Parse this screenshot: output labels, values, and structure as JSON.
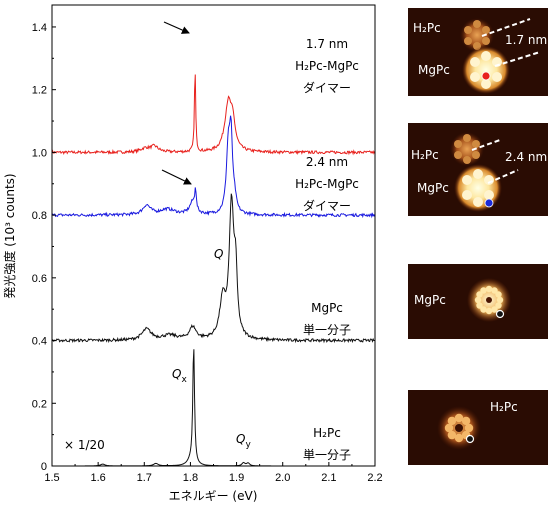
{
  "chart_data": {
    "type": "line",
    "xlabel": "エネルギー (eV)",
    "ylabel": "発光強度 (10³ counts)",
    "xlim": [
      1.5,
      2.2
    ],
    "ylim": [
      0,
      1.47
    ],
    "xticks": [
      1.5,
      1.6,
      1.7,
      1.8,
      1.9,
      2.0,
      2.1,
      2.2
    ],
    "yticks": [
      0,
      0.2,
      0.4,
      0.6,
      0.8,
      1.0,
      1.2,
      1.4
    ],
    "xtick_labels": [
      "1.5",
      "1.6",
      "1.7",
      "1.8",
      "1.9",
      "2.0",
      "2.1",
      "2.2"
    ],
    "ytick_labels": [
      "0",
      "0.2",
      "0.4",
      "0.6",
      "0.8",
      "1.0",
      "1.2",
      "1.4"
    ],
    "grid": false,
    "series": [
      {
        "color": "#e8211d",
        "baseline": 0.2,
        "offset": 1.0,
        "labels": [
          "1.7 nm",
          "H₂Pc-MgPc",
          "ダイマー"
        ],
        "peaks": [
          {
            "x": 1.702,
            "height": 0.012,
            "width": 0.012
          },
          {
            "x": 1.722,
            "height": 0.018,
            "width": 0.01
          },
          {
            "x": 1.81,
            "height": 0.268,
            "width": 0.0016
          },
          {
            "x": 1.882,
            "height": 0.155,
            "width": 0.009
          },
          {
            "x": 1.892,
            "height": 0.07,
            "width": 0.006
          }
        ]
      },
      {
        "color": "#1a1adf",
        "baseline": 0.0,
        "offset": 0.8,
        "labels": [
          "2.4 nm",
          "H₂Pc-MgPc",
          "ダイマー"
        ],
        "peaks": [
          {
            "x": 1.705,
            "height": 0.03,
            "width": 0.01
          },
          {
            "x": 1.75,
            "height": 0.018,
            "width": 0.02
          },
          {
            "x": 1.805,
            "height": 0.04,
            "width": 0.008
          },
          {
            "x": 1.811,
            "height": 0.065,
            "width": 0.0018
          },
          {
            "x": 1.882,
            "height": 0.2,
            "width": 0.005
          },
          {
            "x": 1.888,
            "height": 0.22,
            "width": 0.004
          },
          {
            "x": 1.896,
            "height": 0.035,
            "width": 0.004
          }
        ]
      },
      {
        "color": "#111111",
        "baseline": 0.0,
        "offset": 0.4,
        "labels": [
          "MgPc",
          "単一分子"
        ],
        "peaks": [
          {
            "x": 1.705,
            "height": 0.035,
            "width": 0.012
          },
          {
            "x": 1.755,
            "height": 0.015,
            "width": 0.02
          },
          {
            "x": 1.805,
            "height": 0.04,
            "width": 0.009
          },
          {
            "x": 1.87,
            "height": 0.12,
            "width": 0.008
          },
          {
            "x": 1.889,
            "height": 0.42,
            "width": 0.006
          },
          {
            "x": 1.898,
            "height": 0.18,
            "width": 0.004
          }
        ]
      },
      {
        "color": "#111111",
        "baseline": 0.0,
        "offset": 0.0,
        "labels": [
          "H₂Pc",
          "単一分子"
        ],
        "peaks": [
          {
            "x": 1.807,
            "height": 0.383,
            "width": 0.0022
          },
          {
            "x": 1.8,
            "height": 0.015,
            "width": 0.008
          },
          {
            "x": 1.61,
            "height": 0.006,
            "width": 0.006
          },
          {
            "x": 1.725,
            "height": 0.008,
            "width": 0.006
          },
          {
            "x": 1.915,
            "height": 0.01,
            "width": 0.004
          },
          {
            "x": 1.925,
            "height": 0.009,
            "width": 0.004
          }
        ]
      }
    ],
    "annotations": {
      "q": "Q",
      "qx_main": "Q",
      "qx_sub": "x",
      "qy_main": "Q",
      "qy_sub": "y",
      "scale": "× 1/20"
    }
  },
  "images": [
    {
      "labels": [
        "H₂Pc",
        "MgPc"
      ],
      "distance": "1.7 nm",
      "dot_color": "#e8211d"
    },
    {
      "labels": [
        "H₂Pc",
        "MgPc"
      ],
      "distance": "2.4 nm",
      "dot_color": "#1a2ad8"
    },
    {
      "labels": [
        "MgPc"
      ],
      "dot_color": "#111111"
    },
    {
      "labels": [
        "H₂Pc"
      ],
      "dot_color": "#111111"
    }
  ]
}
